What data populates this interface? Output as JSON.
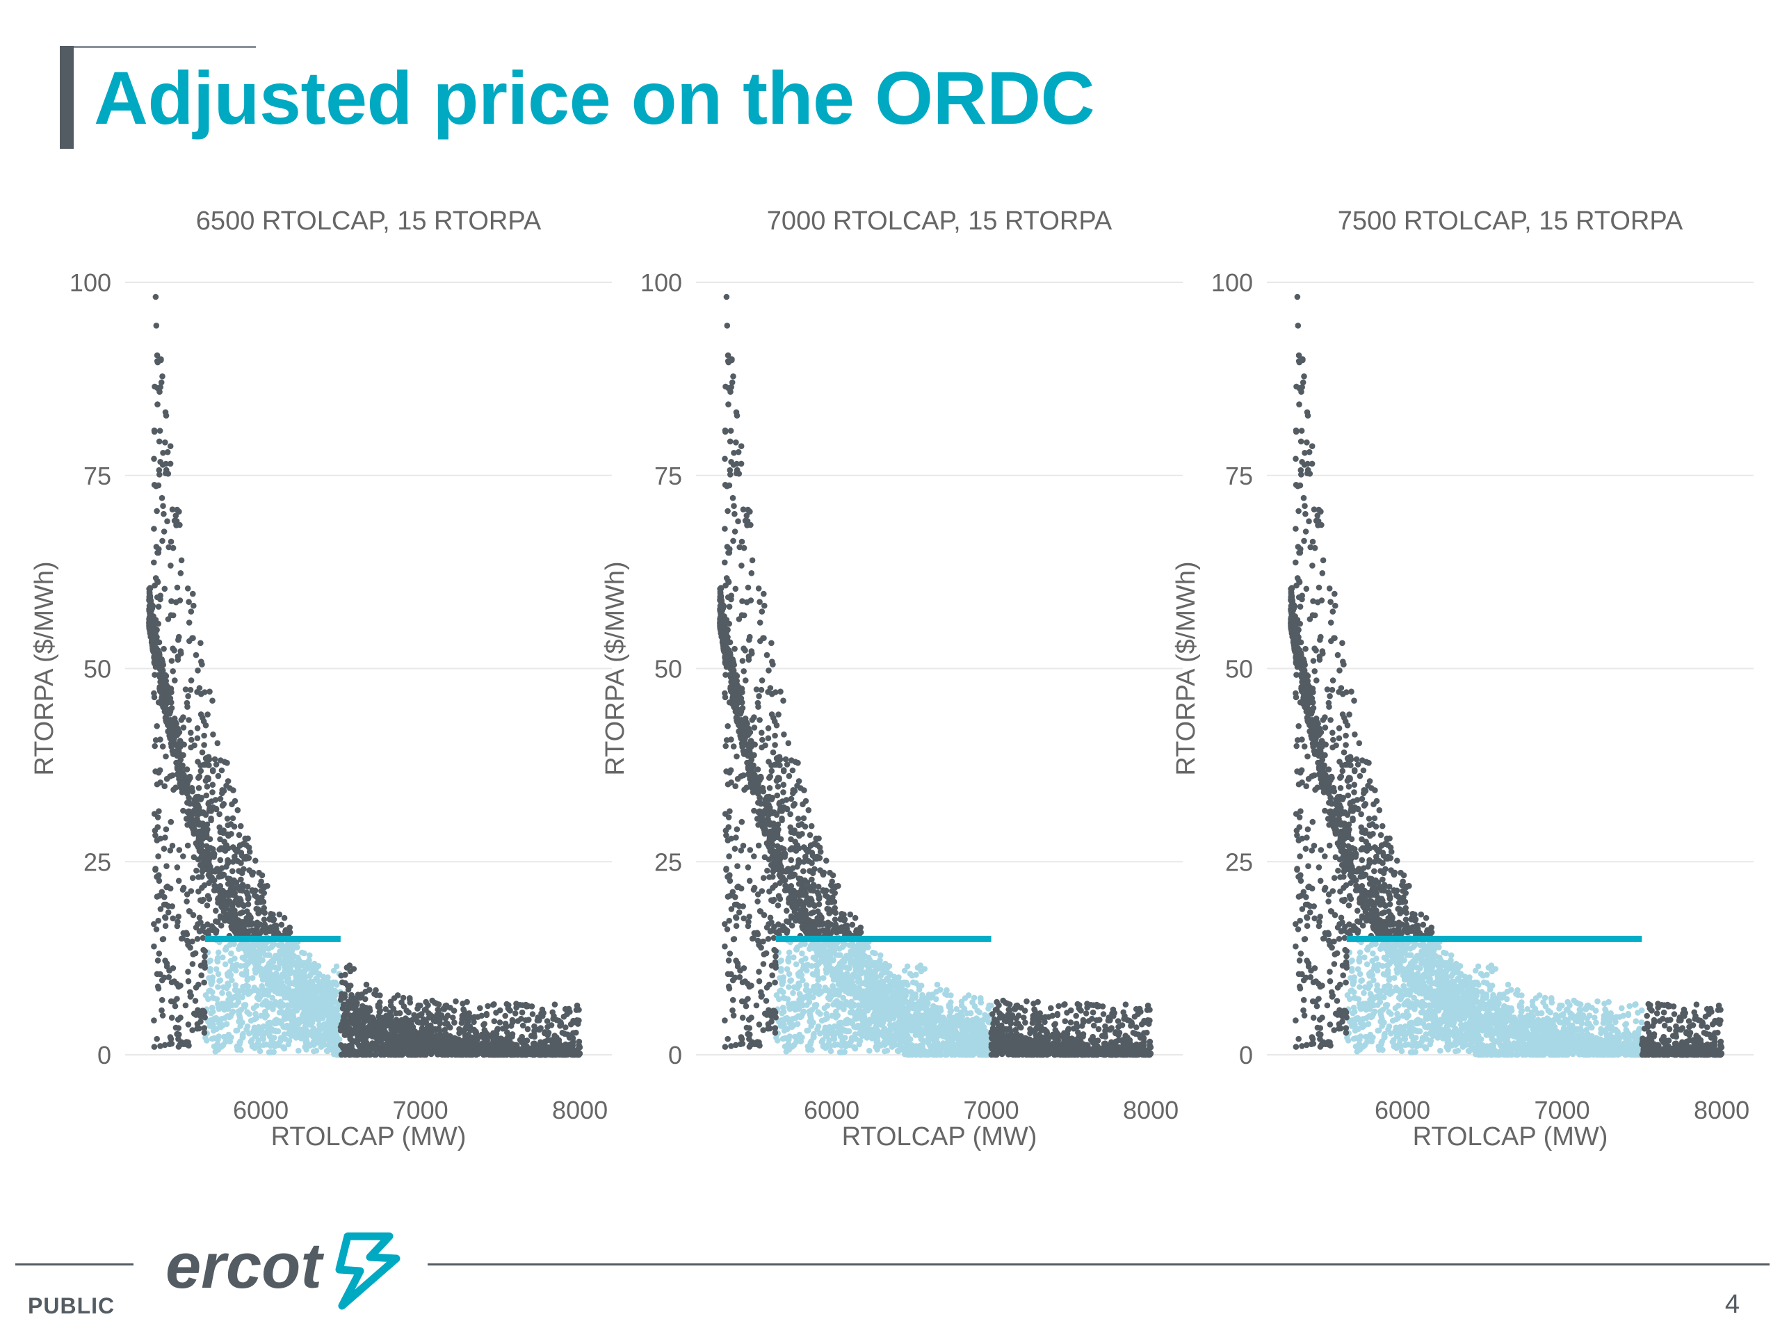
{
  "slide": {
    "title": "Adjusted price on the ORDC",
    "classification": "PUBLIC",
    "page_number": "4",
    "logo_text": "ercot"
  },
  "colors": {
    "title": "#00a9c2",
    "dark_points": "#545c63",
    "light_points": "#a8d8e6",
    "line": "#00aec7",
    "grid": "#e8e8e8",
    "axis_text": "#666666"
  },
  "chart_data": [
    {
      "type": "scatter",
      "title": "6500 RTOLCAP, 15 RTORPA",
      "xlabel": "RTOLCAP (MW)",
      "ylabel": "RTORPA ($/MWh)",
      "xlim": [
        5150,
        8200
      ],
      "ylim": [
        0,
        100
      ],
      "x_ticks": [
        6000,
        7000,
        8000
      ],
      "y_ticks": [
        0,
        25,
        50,
        75,
        100
      ],
      "grid": true,
      "rtolcap_threshold": 6500,
      "rtorpa_threshold": 15,
      "horizontal_line": {
        "y": 15,
        "x_start": 5650,
        "x_end": 6500
      },
      "series": [
        {
          "role": "unadjusted",
          "color": "#545c63"
        },
        {
          "role": "adjusted",
          "color": "#a8d8e6"
        }
      ]
    },
    {
      "type": "scatter",
      "title": "7000 RTOLCAP, 15 RTORPA",
      "xlabel": "RTOLCAP (MW)",
      "ylabel": "RTORPA ($/MWh)",
      "xlim": [
        5150,
        8200
      ],
      "ylim": [
        0,
        100
      ],
      "x_ticks": [
        6000,
        7000,
        8000
      ],
      "y_ticks": [
        0,
        25,
        50,
        75,
        100
      ],
      "grid": true,
      "rtolcap_threshold": 7000,
      "rtorpa_threshold": 15,
      "horizontal_line": {
        "y": 15,
        "x_start": 5650,
        "x_end": 7000
      },
      "series": [
        {
          "role": "unadjusted",
          "color": "#545c63"
        },
        {
          "role": "adjusted",
          "color": "#a8d8e6"
        }
      ]
    },
    {
      "type": "scatter",
      "title": "7500 RTOLCAP, 15 RTORPA",
      "xlabel": "RTOLCAP (MW)",
      "ylabel": "RTORPA ($/MWh)",
      "xlim": [
        5150,
        8200
      ],
      "ylim": [
        0,
        100
      ],
      "x_ticks": [
        6000,
        7000,
        8000
      ],
      "y_ticks": [
        0,
        25,
        50,
        75,
        100
      ],
      "grid": true,
      "rtolcap_threshold": 7500,
      "rtorpa_threshold": 15,
      "horizontal_line": {
        "y": 15,
        "x_start": 5650,
        "x_end": 7500
      },
      "series": [
        {
          "role": "unadjusted",
          "color": "#545c63"
        },
        {
          "role": "adjusted",
          "color": "#a8d8e6"
        }
      ]
    }
  ]
}
